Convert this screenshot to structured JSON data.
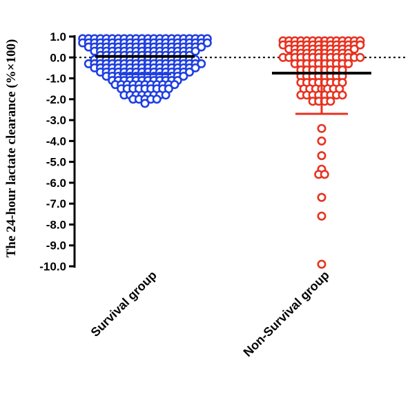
{
  "chart_data": {
    "type": "scatter",
    "subtype": "dot-plot-with-mean-and-sd",
    "ylabel": "The 24-hour lactate clearance (%×100)",
    "ylim": [
      -10.0,
      1.0
    ],
    "yticks": [
      1.0,
      0.0,
      -1.0,
      -2.0,
      -3.0,
      -4.0,
      -5.0,
      -6.0,
      -7.0,
      -8.0,
      -9.0,
      -10.0
    ],
    "ytick_labels": [
      "1.0",
      "0.0",
      "-1.0",
      "-2.0",
      "-3.0",
      "-4.0",
      "-5.0",
      "-6.0",
      "-7.0",
      "-8.0",
      "-9.0",
      "-10.0"
    ],
    "categories": [
      "Survival group",
      "Non-Survival group"
    ],
    "reference_line": 0.0,
    "grid": false,
    "colors": {
      "Survival group": "#1f3fe0",
      "Non-Survival group": "#e8311f",
      "mean_line": "#000000"
    },
    "series": [
      {
        "category": "Survival group",
        "mean": 0.05,
        "sd_upper": 0.9,
        "sd_lower": -0.8,
        "points": [
          {
            "y": 0.9,
            "n": 22
          },
          {
            "y": 0.7,
            "n": 22
          },
          {
            "y": 0.5,
            "n": 20
          },
          {
            "y": 0.3,
            "n": 18
          },
          {
            "y": 0.1,
            "n": 16
          },
          {
            "y": -0.1,
            "n": 18
          },
          {
            "y": -0.3,
            "n": 20
          },
          {
            "y": -0.5,
            "n": 18
          },
          {
            "y": -0.7,
            "n": 16
          },
          {
            "y": -0.9,
            "n": 14
          },
          {
            "y": -1.1,
            "n": 12
          },
          {
            "y": -1.3,
            "n": 11
          },
          {
            "y": -1.5,
            "n": 9
          },
          {
            "y": -1.8,
            "n": 8
          },
          {
            "y": -2.0,
            "n": 5
          },
          {
            "y": -2.2,
            "n": 1
          }
        ]
      },
      {
        "category": "Non-Survival group",
        "mean": -0.75,
        "sd_upper": 0.95,
        "sd_lower": -2.7,
        "points": [
          {
            "y": 0.8,
            "n": 14
          },
          {
            "y": 0.6,
            "n": 14
          },
          {
            "y": 0.4,
            "n": 12
          },
          {
            "y": 0.2,
            "n": 10
          },
          {
            "y": 0.0,
            "n": 14
          },
          {
            "y": -0.3,
            "n": 10
          },
          {
            "y": -0.6,
            "n": 8
          },
          {
            "y": -0.9,
            "n": 8
          },
          {
            "y": -1.2,
            "n": 8
          },
          {
            "y": -1.5,
            "n": 7
          },
          {
            "y": -1.8,
            "n": 8
          },
          {
            "y": -2.1,
            "n": 4
          },
          {
            "y": -3.4,
            "n": 1
          },
          {
            "y": -4.0,
            "n": 1
          },
          {
            "y": -4.7,
            "n": 1
          },
          {
            "y": -5.35,
            "n": 1
          },
          {
            "y": -5.6,
            "n": 2
          },
          {
            "y": -6.7,
            "n": 1
          },
          {
            "y": -7.6,
            "n": 1
          },
          {
            "y": -9.9,
            "n": 1
          }
        ]
      }
    ]
  }
}
